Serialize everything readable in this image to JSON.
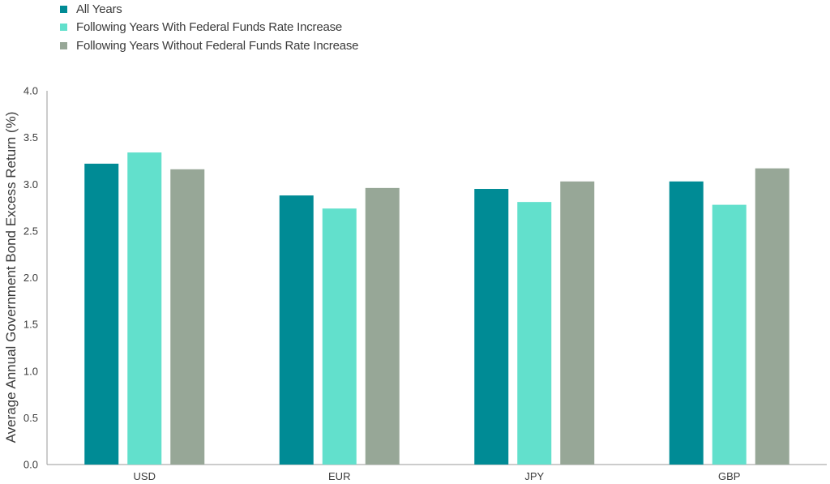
{
  "chart_data": {
    "type": "bar",
    "categories": [
      "USD",
      "EUR",
      "JPY",
      "GBP"
    ],
    "series": [
      {
        "name": "All Years",
        "color": "#008b95",
        "values": [
          3.22,
          2.88,
          2.95,
          3.03
        ]
      },
      {
        "name": "Following Years With Federal Funds Rate Increase",
        "color": "#62e0cc",
        "values": [
          3.34,
          2.74,
          2.81,
          2.78
        ]
      },
      {
        "name": "Following Years Without Federal Funds Rate Increase",
        "color": "#97a797",
        "values": [
          3.16,
          2.96,
          3.03,
          3.17
        ]
      }
    ],
    "ylabel": "Average Annual Government Bond Excess Return (%)",
    "xlabel": "",
    "ylim": [
      0,
      4.0
    ],
    "yticks": [
      "0.0",
      "0.5",
      "1.0",
      "1.5",
      "2.0",
      "2.5",
      "3.0",
      "3.5",
      "4.0"
    ],
    "grid": false,
    "legend_position": "top-left"
  }
}
